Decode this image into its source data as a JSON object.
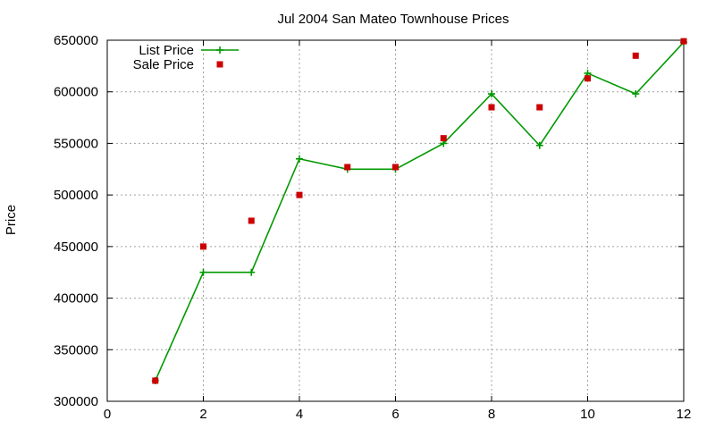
{
  "chart_data": {
    "type": "line",
    "title": "Jul 2004 San Mateo Townhouse Prices",
    "xlabel": "",
    "ylabel": "Price",
    "xlim": [
      0,
      12
    ],
    "ylim": [
      300000,
      650000
    ],
    "xticks": [
      0,
      2,
      4,
      6,
      8,
      10,
      12
    ],
    "yticks": [
      300000,
      350000,
      400000,
      450000,
      500000,
      550000,
      600000,
      650000
    ],
    "grid": true,
    "legend_position": "top-left",
    "series": [
      {
        "name": "List Price",
        "style": "line+cross",
        "color": "#009900",
        "x": [
          1,
          2,
          3,
          4,
          5,
          6,
          7,
          8,
          9,
          10,
          11,
          12
        ],
        "y": [
          320000,
          425000,
          425000,
          535000,
          525000,
          525000,
          550000,
          598000,
          548000,
          618000,
          598000,
          648000
        ]
      },
      {
        "name": "Sale Price",
        "style": "square-points",
        "color": "#cc0000",
        "x": [
          1,
          2,
          3,
          4,
          5,
          6,
          7,
          8,
          9,
          10,
          11,
          12
        ],
        "y": [
          320000,
          450000,
          475000,
          500000,
          527000,
          527000,
          555000,
          585000,
          585000,
          613000,
          635000,
          649000
        ]
      }
    ]
  }
}
